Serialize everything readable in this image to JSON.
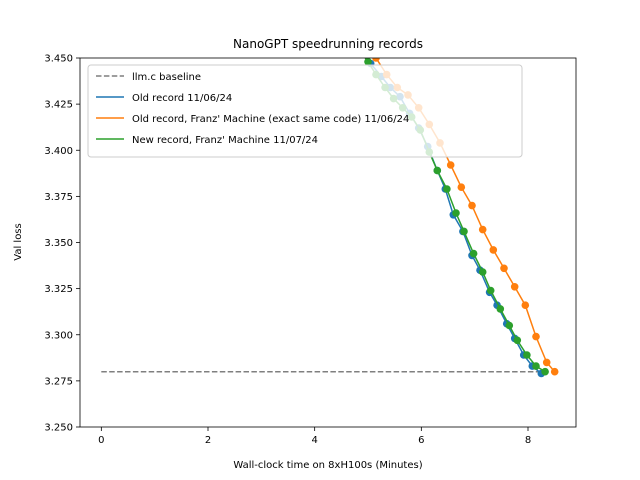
{
  "chart_data": {
    "type": "line",
    "title": "NanoGPT speedrunning records",
    "xlabel": "Wall-clock time on 8xH100s (Minutes)",
    "ylabel": "Val loss",
    "xlim": [
      -0.4,
      8.9
    ],
    "ylim": [
      3.25,
      3.45
    ],
    "xticks": [
      0,
      2,
      4,
      6,
      8
    ],
    "yticks": [
      3.25,
      3.275,
      3.3,
      3.325,
      3.35,
      3.375,
      3.4,
      3.425,
      3.45
    ],
    "ytick_labels": [
      "3.250",
      "3.275",
      "3.300",
      "3.325",
      "3.350",
      "3.375",
      "3.400",
      "3.425",
      "3.450"
    ],
    "grid": false,
    "legend_position": "upper-left",
    "series": [
      {
        "name": "llm.c baseline",
        "color": "#7f7f7f",
        "style": "dashed",
        "markers": false,
        "x": [
          0,
          8.25
        ],
        "y": [
          3.28,
          3.28
        ]
      },
      {
        "name": "Old record 11/06/24",
        "color": "#1f77b4",
        "style": "solid",
        "markers": true,
        "x": [
          4.85,
          5.05,
          5.25,
          5.42,
          5.6,
          5.78,
          5.95,
          6.12,
          6.3,
          6.45,
          6.6,
          6.78,
          6.95,
          7.1,
          7.28,
          7.42,
          7.6,
          7.75,
          7.92,
          8.08,
          8.25
        ],
        "y": [
          3.456,
          3.447,
          3.44,
          3.434,
          3.429,
          3.42,
          3.412,
          3.402,
          3.389,
          3.379,
          3.365,
          3.356,
          3.343,
          3.335,
          3.323,
          3.316,
          3.306,
          3.298,
          3.289,
          3.283,
          3.279
        ]
      },
      {
        "name": "Old record, Franz' Machine (exact same code) 11/06/24",
        "color": "#ff7f0e",
        "style": "solid",
        "markers": true,
        "x": [
          4.95,
          5.15,
          5.35,
          5.55,
          5.75,
          5.95,
          6.15,
          6.35,
          6.55,
          6.75,
          6.95,
          7.15,
          7.35,
          7.55,
          7.75,
          7.95,
          8.15,
          8.35,
          8.5
        ],
        "y": [
          3.462,
          3.45,
          3.441,
          3.434,
          3.43,
          3.423,
          3.414,
          3.404,
          3.392,
          3.38,
          3.37,
          3.357,
          3.346,
          3.336,
          3.326,
          3.316,
          3.299,
          3.285,
          3.28
        ]
      },
      {
        "name": "New record, Franz' Machine 11/07/24",
        "color": "#2ca02c",
        "style": "solid",
        "markers": true,
        "x": [
          4.82,
          5.0,
          5.15,
          5.32,
          5.48,
          5.65,
          5.82,
          5.98,
          6.15,
          6.3,
          6.48,
          6.65,
          6.8,
          6.98,
          7.15,
          7.3,
          7.48,
          7.65,
          7.8,
          7.98,
          8.15,
          8.32
        ],
        "y": [
          3.455,
          3.448,
          3.441,
          3.434,
          3.428,
          3.423,
          3.418,
          3.411,
          3.399,
          3.389,
          3.379,
          3.366,
          3.356,
          3.344,
          3.334,
          3.324,
          3.314,
          3.305,
          3.297,
          3.289,
          3.283,
          3.28
        ]
      }
    ]
  }
}
